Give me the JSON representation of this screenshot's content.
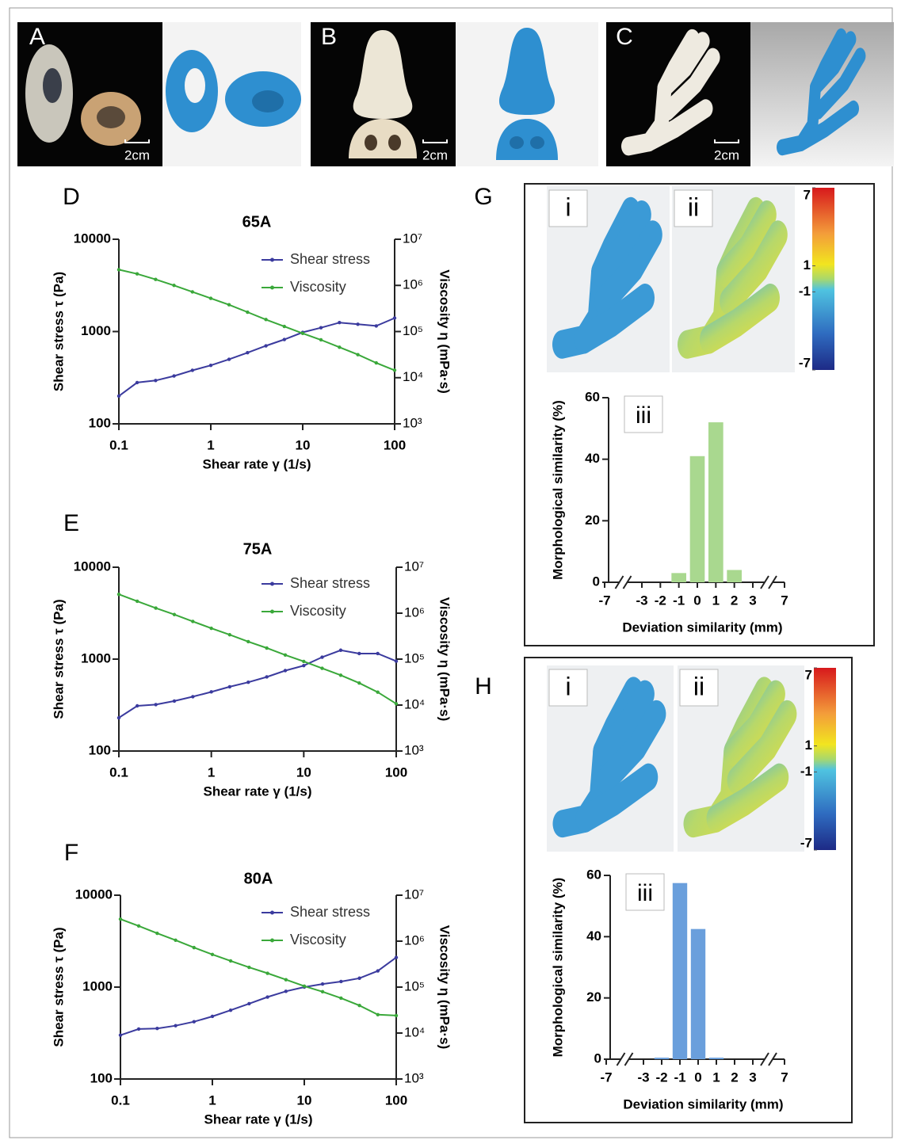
{
  "photos": [
    {
      "letter": "A",
      "scale": "2cm"
    },
    {
      "letter": "B",
      "scale": "2cm"
    },
    {
      "letter": "C",
      "scale": "2cm"
    }
  ],
  "panels": [
    {
      "letter": "G",
      "insets": [
        "i",
        "ii"
      ],
      "colorbar_lim": [
        -7,
        7
      ],
      "colorbar_ticks": [
        7,
        1,
        -1,
        -7
      ]
    },
    {
      "letter": "H",
      "insets": [
        "i",
        "ii"
      ],
      "colorbar_lim": [
        -7,
        7
      ],
      "colorbar_ticks": [
        7,
        1,
        -1,
        -7
      ]
    }
  ],
  "chart_data": [
    {
      "type": "line",
      "panel": "D",
      "title": "65A",
      "xscale": "log",
      "yscale": "log",
      "y2scale": "log",
      "xlabel": "Shear rate γ (1/s)",
      "ylabel": "Shear stress τ (Pa)",
      "y2label": "Viscosity η (mPa·s)",
      "xlim": [
        0.1,
        100
      ],
      "xticks": [
        0.1,
        1,
        10,
        100
      ],
      "ylim": [
        100,
        10000
      ],
      "yticks": [
        100,
        1000,
        10000
      ],
      "y2lim": [
        1000,
        10000000
      ],
      "y2ticks": [
        {
          "value": 1000,
          "label": "10³"
        },
        {
          "value": 10000,
          "label": "10⁴"
        },
        {
          "value": 100000,
          "label": "10⁵"
        },
        {
          "value": 1000000,
          "label": "10⁶"
        },
        {
          "value": 10000000,
          "label": "10⁷"
        }
      ],
      "x": [
        0.1,
        0.158,
        0.251,
        0.398,
        0.631,
        1,
        1.58,
        2.51,
        3.98,
        6.31,
        10,
        15.8,
        25.1,
        39.8,
        63.1,
        100
      ],
      "series": [
        {
          "name": "Shear stress",
          "color": "#3b3b9e",
          "values": [
            200,
            280,
            295,
            330,
            380,
            430,
            500,
            590,
            700,
            820,
            980,
            1100,
            1250,
            1200,
            1150,
            1400
          ]
        },
        {
          "name": "Viscosity",
          "color": "#3aa83a",
          "axis": "y2",
          "values": [
            2190000,
            1780000,
            1350000,
            1000000,
            724000,
            525000,
            380000,
            263000,
            182000,
            129000,
            91200,
            66100,
            45700,
            31600,
            20900,
            14500
          ]
        }
      ]
    },
    {
      "type": "line",
      "panel": "E",
      "title": "75A",
      "xscale": "log",
      "yscale": "log",
      "y2scale": "log",
      "xlabel": "Shear rate γ (1/s)",
      "ylabel": "Shear stress τ (Pa)",
      "y2label": "Viscosity η (mPa·s)",
      "xlim": [
        0.1,
        100
      ],
      "xticks": [
        0.1,
        1,
        10,
        100
      ],
      "ylim": [
        100,
        10000
      ],
      "yticks": [
        100,
        1000,
        10000
      ],
      "y2lim": [
        1000,
        10000000
      ],
      "y2ticks": [
        {
          "value": 1000,
          "label": "10³"
        },
        {
          "value": 10000,
          "label": "10⁴"
        },
        {
          "value": 100000,
          "label": "10⁵"
        },
        {
          "value": 1000000,
          "label": "10⁶"
        },
        {
          "value": 10000000,
          "label": "10⁷"
        }
      ],
      "x": [
        0.1,
        0.158,
        0.251,
        0.398,
        0.631,
        1,
        1.58,
        2.51,
        3.98,
        6.31,
        10,
        15.8,
        25.1,
        39.8,
        63.1,
        100
      ],
      "series": [
        {
          "name": "Shear stress",
          "color": "#3b3b9e",
          "values": [
            230,
            310,
            320,
            350,
            390,
            440,
            500,
            560,
            640,
            750,
            850,
            1050,
            1250,
            1150,
            1150,
            950
          ]
        },
        {
          "name": "Viscosity",
          "color": "#3aa83a",
          "axis": "y2",
          "values": [
            2570000,
            1820000,
            1290000,
            933000,
            661000,
            468000,
            339000,
            240000,
            174000,
            123000,
            89100,
            63100,
            44700,
            30200,
            19100,
            10700
          ]
        }
      ]
    },
    {
      "type": "line",
      "panel": "F",
      "title": "80A",
      "xscale": "log",
      "yscale": "log",
      "y2scale": "log",
      "xlabel": "Shear rate γ (1/s)",
      "ylabel": "Shear stress τ (Pa)",
      "y2label": "Viscosity η (mPa·s)",
      "xlim": [
        0.1,
        100
      ],
      "xticks": [
        0.1,
        1,
        10,
        100
      ],
      "ylim": [
        100,
        10000
      ],
      "yticks": [
        100,
        1000,
        10000
      ],
      "y2lim": [
        1000,
        10000000
      ],
      "y2ticks": [
        {
          "value": 1000,
          "label": "10³"
        },
        {
          "value": 10000,
          "label": "10⁴"
        },
        {
          "value": 100000,
          "label": "10⁵"
        },
        {
          "value": 1000000,
          "label": "10⁶"
        },
        {
          "value": 10000000,
          "label": "10⁷"
        }
      ],
      "x": [
        0.1,
        0.158,
        0.251,
        0.398,
        0.631,
        1,
        1.58,
        2.51,
        3.98,
        6.31,
        10,
        15.8,
        25.1,
        39.8,
        63.1,
        100
      ],
      "series": [
        {
          "name": "Shear stress",
          "color": "#3b3b9e",
          "values": [
            300,
            350,
            355,
            380,
            420,
            480,
            560,
            660,
            780,
            900,
            1000,
            1080,
            1150,
            1250,
            1500,
            2100
          ]
        },
        {
          "name": "Viscosity",
          "color": "#3aa83a",
          "axis": "y2",
          "values": [
            3020000,
            2140000,
            1480000,
            1050000,
            724000,
            513000,
            372000,
            269000,
            200000,
            145000,
            105000,
            79400,
            57500,
            39800,
            25100,
            24000
          ]
        }
      ]
    },
    {
      "type": "bar",
      "annotation": "iii",
      "xlabel": "Deviation similarity (mm)",
      "ylabel": "Morphological similarity (%)",
      "xlim": [
        -7,
        7
      ],
      "xticks": [
        -7,
        -3,
        -2,
        -1,
        0,
        1,
        2,
        3,
        7
      ],
      "ylim": [
        0,
        60
      ],
      "yticks": [
        0,
        20,
        40,
        60
      ],
      "color": "#a9d88f",
      "x": [
        -1,
        0,
        1,
        2
      ],
      "values": [
        3,
        41,
        52,
        4
      ]
    },
    {
      "type": "bar",
      "annotation": "iii",
      "xlabel": "Deviation similarity (mm)",
      "ylabel": "Morphological similarity (%)",
      "xlim": [
        -7,
        7
      ],
      "xticks": [
        -7,
        -3,
        -2,
        -1,
        0,
        1,
        2,
        3,
        7
      ],
      "ylim": [
        0,
        60
      ],
      "yticks": [
        0,
        20,
        40,
        60
      ],
      "color": "#6a9fdc",
      "x": [
        -2,
        -1,
        0,
        1
      ],
      "values": [
        0.5,
        57.5,
        42.5,
        0.5
      ]
    }
  ]
}
